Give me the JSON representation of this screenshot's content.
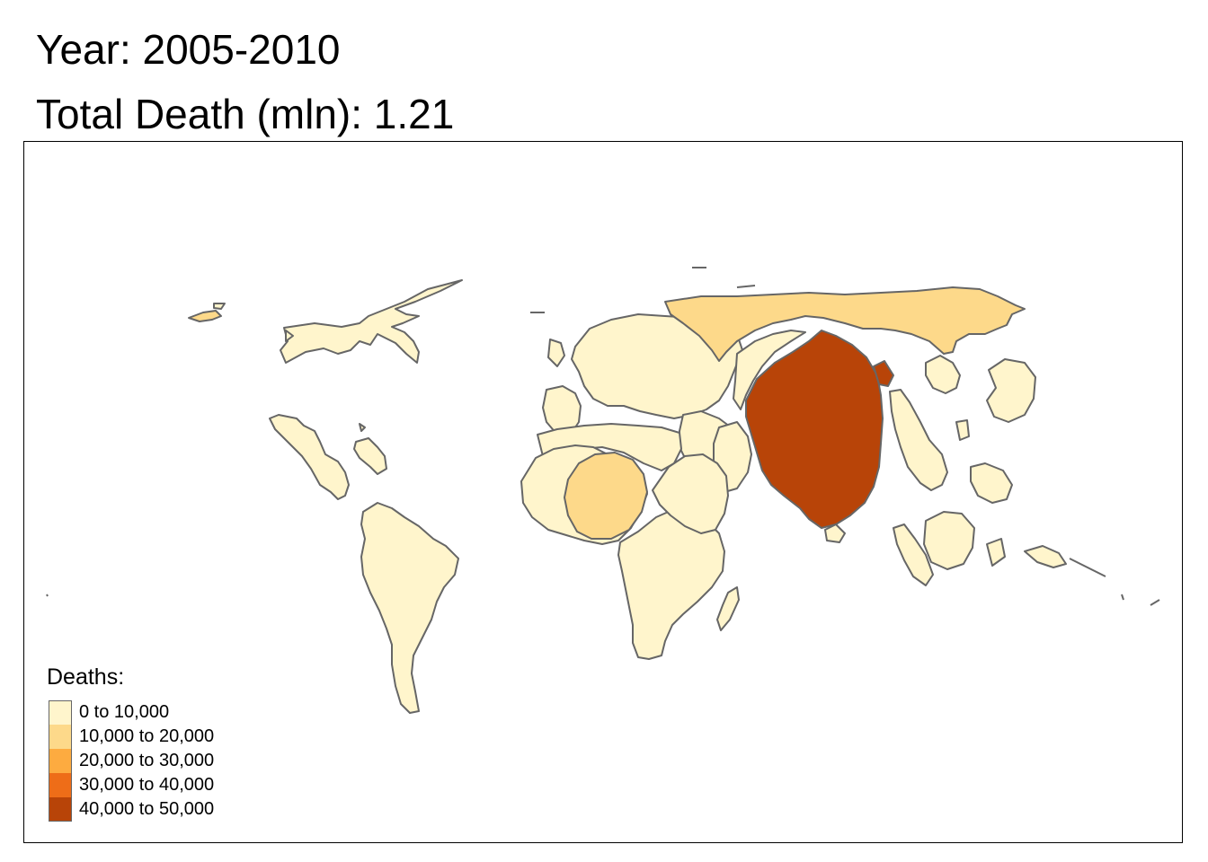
{
  "title": {
    "year_label": "Year: 2005-2010",
    "total_label": "Total Death (mln): 1.21"
  },
  "legend": {
    "title": "Deaths:",
    "items": [
      {
        "label": "0 to 10,000",
        "color": "#fff5cc"
      },
      {
        "label": "10,000 to 20,000",
        "color": "#fdd98a"
      },
      {
        "label": "20,000 to 30,000",
        "color": "#fdab40"
      },
      {
        "label": "30,000 to 40,000",
        "color": "#ee6d18"
      },
      {
        "label": "40,000 to 50,000",
        "color": "#b84408"
      }
    ]
  },
  "map": {
    "type": "cartogram",
    "border_color": "#666666",
    "regions": [
      {
        "name": "India",
        "class_index": 4
      },
      {
        "name": "Russia",
        "class_index": 1
      },
      {
        "name": "Nigeria",
        "class_index": 1
      },
      {
        "name": "Greenland",
        "class_index": 1
      }
    ]
  }
}
